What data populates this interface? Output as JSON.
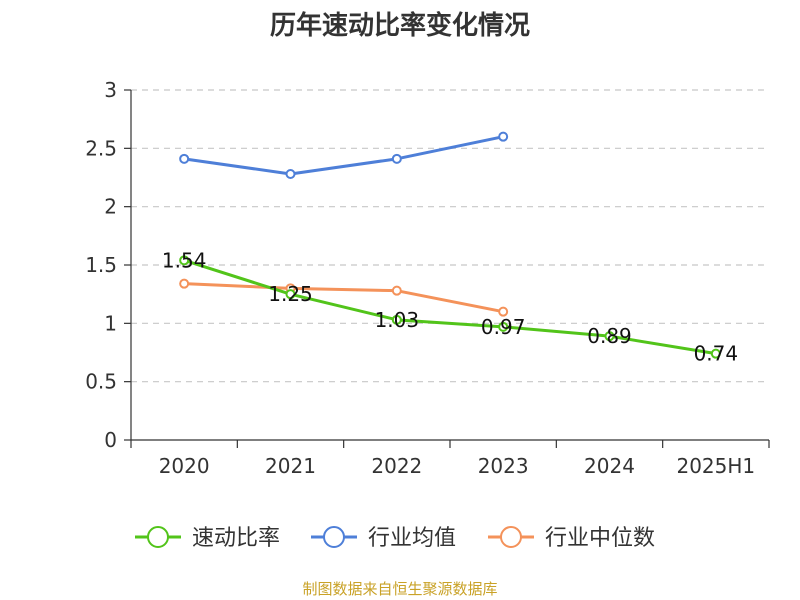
{
  "chart_data": {
    "type": "line",
    "title": "历年速动比率变化情况",
    "categories": [
      "2020",
      "2021",
      "2022",
      "2023",
      "2024",
      "2025H1"
    ],
    "ylim": [
      0,
      3
    ],
    "y_ticks": [
      "0",
      "0.5",
      "1",
      "1.5",
      "2",
      "2.5",
      "3"
    ],
    "grid": true,
    "legend_position": "bottom",
    "series": [
      {
        "name": "速动比率",
        "color": "#52c41a",
        "values": [
          1.54,
          1.25,
          1.03,
          0.97,
          0.89,
          0.74
        ],
        "labels": [
          "1.54",
          "1.25",
          "1.03",
          "0.97",
          "0.89",
          "0.74"
        ]
      },
      {
        "name": "行业均值",
        "color": "#4e7fd8",
        "values": [
          2.41,
          2.28,
          2.41,
          2.6,
          null,
          null
        ]
      },
      {
        "name": "行业中位数",
        "color": "#f4925a",
        "values": [
          1.34,
          1.3,
          1.28,
          1.1,
          null,
          null
        ]
      }
    ]
  },
  "source_text": "制图数据来自恒生聚源数据库",
  "source_color": "#c9a227"
}
